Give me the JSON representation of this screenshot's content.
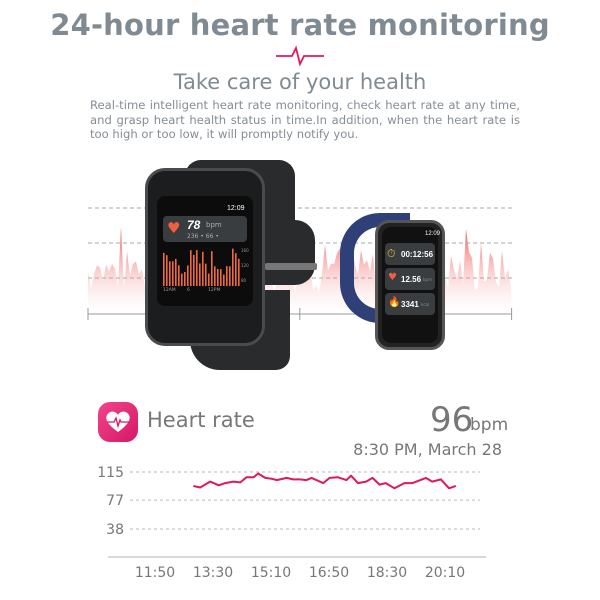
{
  "header": {
    "title": "24-hour heart rate monitoring",
    "subtitle": "Take care of your health",
    "description": "Real-time intelligent heart rate monitoring, check heart rate at any time, and grasp heart health status in time.In addition, when the heart rate is too high or too low, it will promptly notify you.",
    "accent_color": "#e0185f"
  },
  "watch_main": {
    "time": "12:09",
    "heart_rate": "78",
    "unit": "bpm",
    "sub_stats": "236 • 66 •",
    "y_ticks": [
      "160",
      "120",
      "80"
    ],
    "x_ticks": [
      "12AM",
      "6",
      "12PM"
    ]
  },
  "watch_small": {
    "time": "12:09",
    "timer": "00:12:56",
    "distance": "12.56",
    "distance_unit": "bpm",
    "calories": "3341",
    "calories_unit": "kcal"
  },
  "heart_rate_panel": {
    "label": "Heart rate",
    "value": "96",
    "unit": "bpm",
    "timestamp": "8:30 PM, March 28",
    "icon": "heart-pulse-icon"
  },
  "chart_data": {
    "type": "line",
    "y_ticks": [
      "115",
      "77",
      "38"
    ],
    "x_ticks": [
      "11:50",
      "13:30",
      "15:10",
      "16:50",
      "18:30",
      "20:10"
    ],
    "grid": true,
    "line_color": "#e0185f",
    "points": [
      [
        "12:57",
        96
      ],
      [
        "13:08",
        94
      ],
      [
        "13:25",
        102
      ],
      [
        "13:40",
        97
      ],
      [
        "13:51",
        100
      ],
      [
        "14:05",
        102
      ],
      [
        "14:17",
        101
      ],
      [
        "14:28",
        108
      ],
      [
        "14:40",
        108
      ],
      [
        "14:48",
        113
      ],
      [
        "15:00",
        107
      ],
      [
        "15:11",
        106
      ],
      [
        "15:20",
        104
      ],
      [
        "15:37",
        107
      ],
      [
        "15:48",
        105
      ],
      [
        "16:00",
        105
      ],
      [
        "16:11",
        104
      ],
      [
        "16:20",
        107
      ],
      [
        "16:40",
        100
      ],
      [
        "16:51",
        107
      ],
      [
        "17:05",
        108
      ],
      [
        "17:20",
        104
      ],
      [
        "17:28",
        110
      ],
      [
        "17:40",
        100
      ],
      [
        "17:54",
        102
      ],
      [
        "18:05",
        107
      ],
      [
        "18:17",
        98
      ],
      [
        "18:28",
        100
      ],
      [
        "18:43",
        93
      ],
      [
        "19:00",
        100
      ],
      [
        "19:14",
        100
      ],
      [
        "19:37",
        107
      ],
      [
        "19:48",
        102
      ],
      [
        "20:03",
        105
      ],
      [
        "20:17",
        93
      ],
      [
        "20:28",
        96
      ]
    ]
  }
}
